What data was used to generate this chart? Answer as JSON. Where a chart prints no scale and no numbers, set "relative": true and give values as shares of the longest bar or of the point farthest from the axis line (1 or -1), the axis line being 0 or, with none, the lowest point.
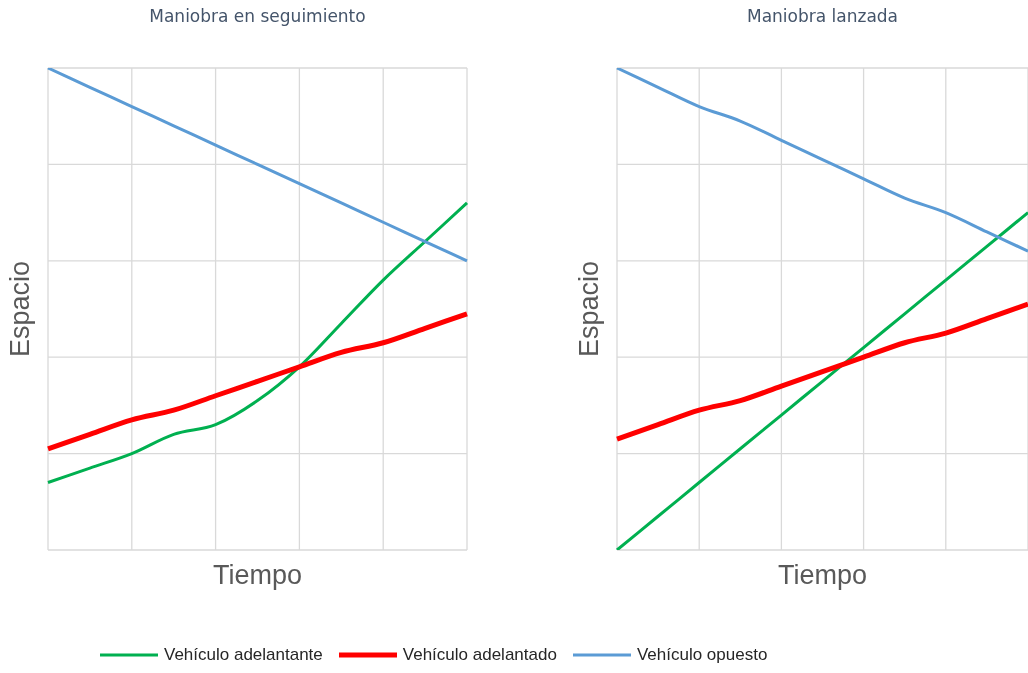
{
  "chart_data": [
    {
      "type": "line",
      "title": "Maniobra en seguimiento",
      "xlabel": "Tiempo",
      "ylabel": "Espacio",
      "relative": true,
      "grid": true,
      "tick_labels": false,
      "legend": "bottom",
      "categories": [
        null,
        null,
        null,
        null,
        null,
        null,
        null,
        null,
        null,
        null,
        null
      ],
      "series": [
        {
          "name": "Vehículo adelantante",
          "color": "#00b050",
          "values": [
            0.14,
            0.17,
            0.2,
            0.24,
            0.26,
            0.31,
            0.38,
            0.47,
            0.56,
            0.64,
            0.72
          ]
        },
        {
          "name": "Vehículo adelantado",
          "color": "#ff0000",
          "values": [
            0.21,
            0.24,
            0.27,
            0.29,
            0.32,
            0.35,
            0.38,
            0.41,
            0.43,
            0.46,
            0.49
          ]
        },
        {
          "name": "Vehículo opuesto",
          "color": "#5b9bd5",
          "values": [
            1,
            0.96,
            0.92,
            0.88,
            0.84,
            0.8,
            0.76,
            0.72,
            0.68,
            0.64,
            0.6
          ]
        }
      ]
    },
    {
      "type": "line",
      "title": "Maniobra lanzada",
      "xlabel": "Tiempo",
      "ylabel": "Espacio",
      "relative": true,
      "grid": true,
      "tick_labels": false,
      "categories": [
        null,
        null,
        null,
        null,
        null,
        null,
        null,
        null,
        null,
        null,
        null
      ],
      "series": [
        {
          "color": "#00b050",
          "values": [
            0,
            0.07,
            0.14,
            0.21,
            0.28,
            0.35,
            0.42,
            0.49,
            0.56,
            0.63,
            0.7
          ]
        },
        {
          "color": "#ff0000",
          "values": [
            0.23,
            0.26,
            0.29,
            0.31,
            0.34,
            0.37,
            0.4,
            0.43,
            0.45,
            0.48,
            0.51
          ]
        },
        {
          "color": "#5b9bd5",
          "values": [
            1,
            0.96,
            0.92,
            0.89,
            0.85,
            0.81,
            0.77,
            0.73,
            0.7,
            0.66,
            0.62
          ]
        }
      ]
    }
  ]
}
